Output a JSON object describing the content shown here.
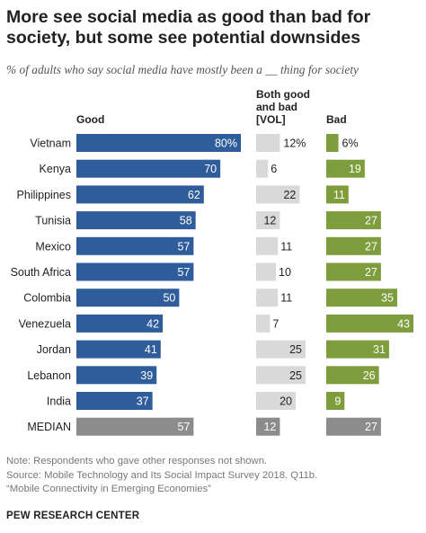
{
  "title": "More see social media as good than bad for society, but some see potential downsides",
  "subtitle": "% of adults who say social media have mostly been a __ thing for society",
  "chart_data": {
    "type": "bar",
    "categories": [
      "Vietnam",
      "Kenya",
      "Philippines",
      "Tunisia",
      "Mexico",
      "South Africa",
      "Colombia",
      "Venezuela",
      "Jordan",
      "Lebanon",
      "India",
      "MEDIAN"
    ],
    "series": [
      {
        "name": "Good",
        "values": [
          80,
          70,
          62,
          58,
          57,
          57,
          50,
          42,
          41,
          39,
          37,
          57
        ],
        "labels": [
          "80%",
          "70",
          "62",
          "58",
          "57",
          "57",
          "50",
          "42",
          "41",
          "39",
          "37",
          "57"
        ],
        "color": "#2f5d9c"
      },
      {
        "name": "Both good and bad [VOL]",
        "values": [
          12,
          6,
          22,
          12,
          11,
          10,
          11,
          7,
          25,
          25,
          20,
          12
        ],
        "labels": [
          "12%",
          "6",
          "22",
          "12",
          "11",
          "10",
          "11",
          "7",
          "25",
          "25",
          "20",
          "12"
        ],
        "color": "#d9d9d9"
      },
      {
        "name": "Bad",
        "values": [
          6,
          19,
          11,
          27,
          27,
          27,
          35,
          43,
          31,
          26,
          9,
          27
        ],
        "labels": [
          "6%",
          "19",
          "11",
          "27",
          "27",
          "27",
          "35",
          "43",
          "31",
          "26",
          "9",
          "27"
        ],
        "color": "#7e9d3c"
      }
    ],
    "column_headers": [
      "Good",
      "Both good\nand bad\n[VOL]",
      "Bad"
    ],
    "median_colors": [
      "#8c8c8c",
      "#8c8c8c",
      "#8c8c8c"
    ],
    "xlim": [
      0,
      80
    ]
  },
  "notes": [
    "Note: Respondents who gave other responses not shown.",
    "Source: Mobile Technology and Its Social Impact Survey 2018. Q11b.",
    "“Mobile Connectivity in Emerging Economies”"
  ],
  "brand": "PEW RESEARCH CENTER"
}
